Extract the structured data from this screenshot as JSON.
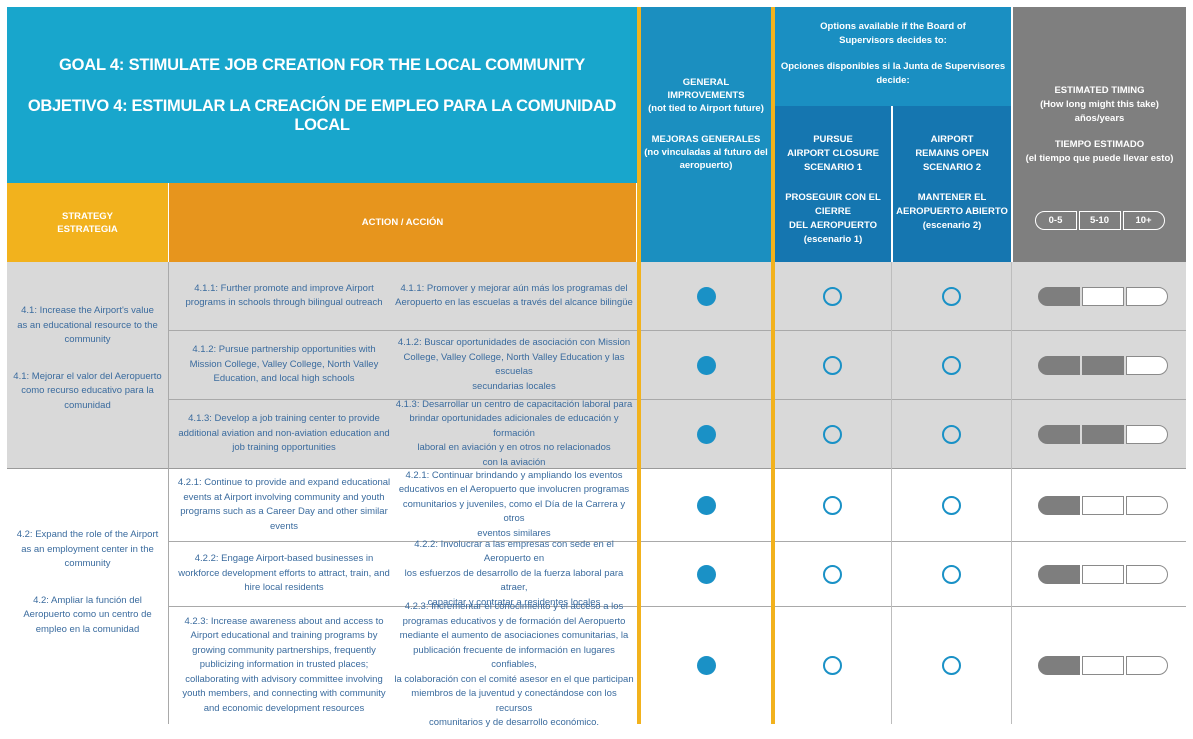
{
  "header": {
    "goal_en": "GOAL 4: STIMULATE JOB CREATION FOR THE LOCAL COMMUNITY",
    "goal_es": "OBJETIVO 4: ESTIMULAR LA CREACIÓN DE EMPLEO PARA LA COMUNIDAD LOCAL",
    "strategy": [
      "STRATEGY",
      "ESTRATEGIA"
    ],
    "action": "ACTION / ACCIÓN",
    "general": [
      "GENERAL",
      "IMPROVEMENTS",
      "(not tied to Airport future)",
      "MEJORAS GENERALES",
      "(no vinculadas al futuro del",
      "aeropuerto)"
    ],
    "options": [
      "Options available if the Board of",
      "Supervisors decides to:",
      "Opciones disponibles si la Junta de Supervisores",
      "decide:"
    ],
    "scenario1": [
      "PURSUE",
      "AIRPORT CLOSURE",
      "SCENARIO 1",
      "PROSEGUIR CON EL CIERRE",
      "DEL AEROPUERTO",
      "(escenario 1)"
    ],
    "scenario2": [
      "AIRPORT",
      "REMAINS OPEN",
      "SCENARIO 2",
      "MANTENER EL",
      "AEROPUERTO ABIERTO",
      "(escenario 2)"
    ],
    "timing": [
      "ESTIMATED TIMING",
      "(How long might this take)",
      "años/years",
      "TIEMPO ESTIMADO",
      "(el tiempo que puede llevar esto)"
    ],
    "timing_ranges": [
      "0-5",
      "5-10",
      "10+"
    ]
  },
  "strategies": [
    {
      "en": [
        "4.1: Increase the Airport's value",
        "as an educational resource to the",
        "community"
      ],
      "es": [
        "4.1: Mejorar el valor del Aeropuerto",
        "como recurso educativo para la",
        "comunidad"
      ]
    },
    {
      "en": [
        "4.2: Expand the role of the Airport",
        "as an employment center in the",
        "community"
      ],
      "es": [
        "4.2: Ampliar la función del",
        "Aeropuerto como un centro de",
        "empleo en la comunidad"
      ]
    }
  ],
  "rows": [
    {
      "en": [
        "4.1.1: Further promote and improve Airport",
        "programs in schools through bilingual outreach"
      ],
      "es": [
        "4.1.1: Promover y mejorar aún más los programas del",
        "Aeropuerto en las escuelas a través del alcance bilingüe"
      ],
      "general": true,
      "scenario1": false,
      "scenario2": false,
      "timing": 1
    },
    {
      "en": [
        "4.1.2: Pursue partnership opportunities with",
        "Mission College, Valley College, North Valley",
        "Education, and local high schools"
      ],
      "es": [
        "4.1.2: Buscar oportunidades de asociación con Mission",
        "College, Valley College, North Valley Education y las escuelas",
        "secundarias locales"
      ],
      "general": true,
      "scenario1": false,
      "scenario2": false,
      "timing": 2
    },
    {
      "en": [
        "4.1.3: Develop a job training center to provide",
        "additional aviation and non-aviation education and",
        "job training opportunities"
      ],
      "es": [
        "4.1.3: Desarrollar un centro de capacitación laboral para",
        "brindar oportunidades adicionales de  educación y formación",
        "laboral en aviación y en otros no relacionados",
        "con la aviación"
      ],
      "general": true,
      "scenario1": false,
      "scenario2": false,
      "timing": 2
    },
    {
      "en": [
        "4.2.1: Continue to provide and expand educational",
        "events at Airport involving community and youth",
        "programs such as a Career Day and other similar",
        "events"
      ],
      "es": [
        "4.2.1: Continuar brindando y ampliando los eventos",
        "educativos en el Aeropuerto que involucren programas",
        "comunitarios y juveniles, como el Día de la Carrera y otros",
        "eventos similares"
      ],
      "general": true,
      "scenario1": false,
      "scenario2": false,
      "timing": 1
    },
    {
      "en": [
        "4.2.2: Engage Airport-based businesses in",
        "workforce development efforts to attract, train, and",
        "hire local residents"
      ],
      "es": [
        "4.2.2: Involucrar a las empresas con sede en el Aeropuerto en",
        "los esfuerzos de desarrollo de la fuerza laboral para atraer,",
        "capacitar y contratar a residentes locales"
      ],
      "general": true,
      "scenario1": false,
      "scenario2": false,
      "timing": 1
    },
    {
      "en": [
        "4.2.3: Increase awareness about and access to",
        "Airport educational and training programs by",
        "growing community partnerships, frequently",
        "publicizing information in trusted places;",
        "collaborating with advisory committee involving",
        "youth members, and connecting with community",
        "and economic development resources"
      ],
      "es": [
        "4.2.3: Incrementar el conocimiento y el acceso a los",
        "programas educativos y de formación del Aeropuerto",
        "mediante el aumento de asociaciones comunitarias, la",
        "publicación frecuente de información en lugares confiables,",
        "la colaboración con el comité asesor en el que participan",
        "miembros de la juventud y conectándose con los recursos",
        "comunitarios y de desarrollo económico."
      ],
      "general": true,
      "scenario1": false,
      "scenario2": false,
      "timing": 1
    }
  ],
  "colors": {
    "title_bg": "#18a6cc",
    "general_bg": "#1b8fc0",
    "options_bg": "#1a8fc2",
    "scenario_bg": "#1576b0",
    "timing_bg": "#7f7f7f",
    "strategy_bg": "#f2b21d",
    "action_bg": "#e7951d",
    "gold_line": "#f2b21d",
    "row_gray": "#d9d9d9",
    "text_blue": "#3a6b9e",
    "dot_blue": "#1a91c6"
  }
}
